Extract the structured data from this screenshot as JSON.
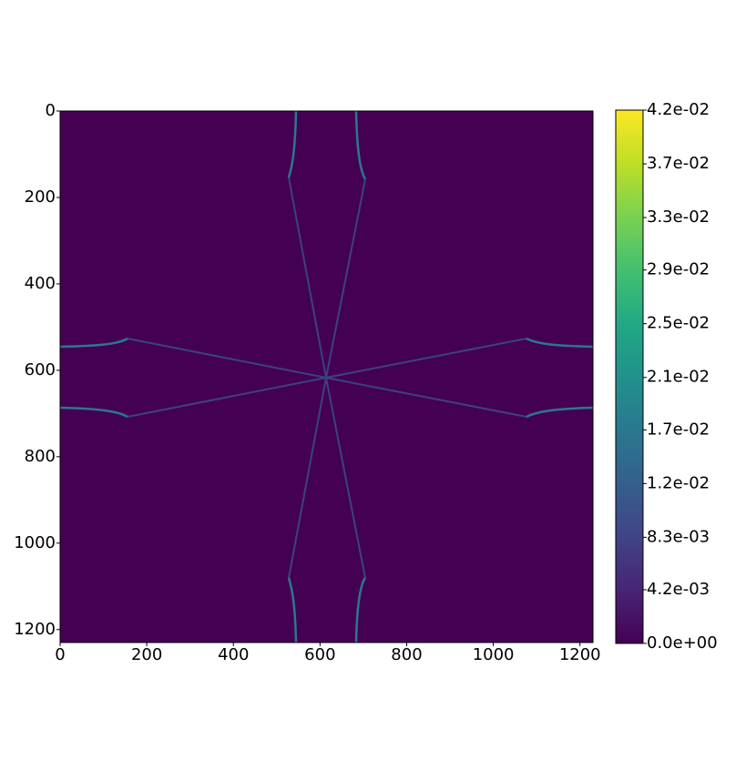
{
  "chart_data": {
    "type": "heatmap",
    "xlim": [
      0,
      1230
    ],
    "xticks": [
      0,
      200,
      400,
      600,
      800,
      1000,
      1200
    ],
    "ylim": [
      1230,
      0
    ],
    "yticks": [
      0,
      200,
      400,
      600,
      800,
      1000,
      1200
    ],
    "colormap": "viridis",
    "background_color": "#440154",
    "clim": [
      0,
      0.0417
    ],
    "cticks": [
      {
        "value": 0,
        "label": "0.0e+00"
      },
      {
        "value": 0.0042,
        "label": "4.2e-03"
      },
      {
        "value": 0.0083,
        "label": "8.3e-03"
      },
      {
        "value": 0.0125,
        "label": "1.2e-02"
      },
      {
        "value": 0.0167,
        "label": "1.7e-02"
      },
      {
        "value": 0.0208,
        "label": "2.1e-02"
      },
      {
        "value": 0.025,
        "label": "2.5e-02"
      },
      {
        "value": 0.0292,
        "label": "2.9e-02"
      },
      {
        "value": 0.0333,
        "label": "3.3e-02"
      },
      {
        "value": 0.0375,
        "label": "3.7e-02"
      },
      {
        "value": 0.0417,
        "label": "4.2e-02"
      }
    ]
  }
}
